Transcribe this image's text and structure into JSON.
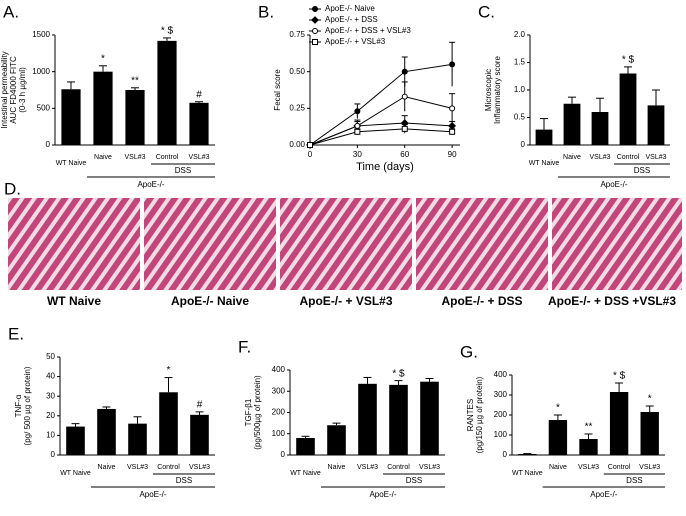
{
  "chart_data": [
    {
      "type": "bar",
      "title": "A.",
      "ylabel": [
        "Intestinal permeability",
        "AUC FD4000 FITC",
        "(0-3 h µg/ml)"
      ],
      "categories": [
        "WT Naive",
        "Naive",
        "VSL#3",
        "Control",
        "VSL#3"
      ],
      "values": [
        760,
        1000,
        750,
        1420,
        575
      ],
      "errors": [
        100,
        80,
        30,
        40,
        15
      ],
      "annotations": [
        null,
        "*",
        "**",
        "* $",
        "#"
      ],
      "group_labels": [
        "DSS",
        "ApoE-/-"
      ],
      "ylim": [
        0,
        1500
      ],
      "yticks": [
        0,
        500,
        1000,
        1500
      ],
      "color": "#000000"
    },
    {
      "type": "line",
      "title": "B.",
      "xlabel": "Time (days)",
      "ylabel": [
        "Fecal score"
      ],
      "x": [
        0,
        30,
        60,
        90
      ],
      "xlim": [
        0,
        95
      ],
      "xticks": [
        0,
        30,
        60,
        90
      ],
      "ylim": [
        0,
        0.75
      ],
      "yticks": [
        {
          "value": 0,
          "label": "0.00"
        },
        {
          "value": 0.25,
          "label": "0.25"
        },
        {
          "value": 0.5,
          "label": "0.50"
        },
        {
          "value": 0.75,
          "label": "0.75"
        }
      ],
      "series": [
        {
          "name": "ApoE-/- Naive",
          "marker": "circle",
          "color": "#000000",
          "values": [
            0,
            0.23,
            0.5,
            0.55
          ],
          "errors": [
            0,
            0.05,
            0.1,
            0.15
          ]
        },
        {
          "name": "ApoE-/- + DSS",
          "marker": "diamond",
          "color": "#000000",
          "values": [
            0,
            0.13,
            0.15,
            0.13
          ],
          "errors": [
            0,
            0.04,
            0.05,
            0.03
          ]
        },
        {
          "name": "ApoE-/- + DSS + VSL#3",
          "marker": "circle-open",
          "color": "#000000",
          "values": [
            0,
            0.13,
            0.33,
            0.25
          ],
          "errors": [
            0,
            0.03,
            0.1,
            0.1
          ]
        },
        {
          "name": "ApoE-/- + VSL#3",
          "marker": "square-open",
          "color": "#000000",
          "values": [
            0,
            0.09,
            0.11,
            0.09
          ],
          "errors": [
            0,
            0.02,
            0.03,
            0.02
          ]
        }
      ]
    },
    {
      "type": "bar",
      "title": "C.",
      "ylabel": [
        "Microscopic",
        "Inflammatory score"
      ],
      "categories": [
        "WT Naive",
        "Naive",
        "VSL#3",
        "Control",
        "VSL#3"
      ],
      "values": [
        0.28,
        0.75,
        0.6,
        1.3,
        0.72
      ],
      "errors": [
        0.2,
        0.12,
        0.25,
        0.12,
        0.28
      ],
      "annotations": [
        null,
        null,
        null,
        "* $",
        null
      ],
      "group_labels": [
        "DSS",
        "ApoE-/-"
      ],
      "ylim": [
        0,
        2
      ],
      "yticks": [
        0,
        0.5,
        {
          "value": 1,
          "label": "1.0"
        },
        1.5,
        {
          "value": 2,
          "label": "2.0"
        }
      ],
      "color": "#000000"
    },
    {
      "type": "bar",
      "title": "E.",
      "ylabel": [
        "TNF-α",
        "(pg/ 500 µg of protein)"
      ],
      "categories": [
        "WT Naive",
        "Naive",
        "VSL#3",
        "Control",
        "VSL#3"
      ],
      "values": [
        14.5,
        23.5,
        16,
        32,
        20.5
      ],
      "errors": [
        1.5,
        1,
        3.5,
        7.5,
        1.5
      ],
      "annotations": [
        null,
        null,
        null,
        "*",
        "#"
      ],
      "group_labels": [
        "DSS",
        "ApoE-/-"
      ],
      "ylim": [
        0,
        50
      ],
      "yticks": [
        0,
        10,
        20,
        30,
        40,
        50
      ],
      "color": "#000000"
    },
    {
      "type": "bar",
      "title": "F.",
      "ylabel": [
        "TGF-β1",
        "(pg/500µg of protein)"
      ],
      "categories": [
        "WT Naive",
        "Naive",
        "VSL#3",
        "Control",
        "VSL#3"
      ],
      "values": [
        80,
        140,
        335,
        330,
        345
      ],
      "errors": [
        8,
        10,
        30,
        20,
        15
      ],
      "annotations": [
        null,
        null,
        null,
        "* $",
        null
      ],
      "group_labels": [
        "DSS",
        "ApoE-/-"
      ],
      "ylim": [
        0,
        400
      ],
      "yticks": [
        0,
        100,
        200,
        300,
        400
      ],
      "color": "#000000"
    },
    {
      "type": "bar",
      "title": "G.",
      "ylabel": [
        "RANTES",
        "(pg/150 µg of protein)"
      ],
      "categories": [
        "WT Naive",
        "Naive",
        "VSL#3",
        "Control",
        "VSL#3"
      ],
      "values": [
        5,
        175,
        80,
        315,
        215
      ],
      "errors": [
        2,
        25,
        25,
        45,
        30
      ],
      "annotations": [
        null,
        "*",
        "**",
        "* $",
        "*"
      ],
      "group_labels": [
        "DSS",
        "ApoE-/-"
      ],
      "ylim": [
        0,
        400
      ],
      "yticks": [
        0,
        100,
        200,
        300,
        400
      ],
      "color": "#000000"
    }
  ],
  "figure_d": {
    "label": "D.",
    "captions": [
      "WT Naive",
      "ApoE-/- Naive",
      "ApoE-/- + VSL#3",
      "ApoE-/- + DSS",
      "ApoE-/- + DSS +VSL#3"
    ]
  }
}
